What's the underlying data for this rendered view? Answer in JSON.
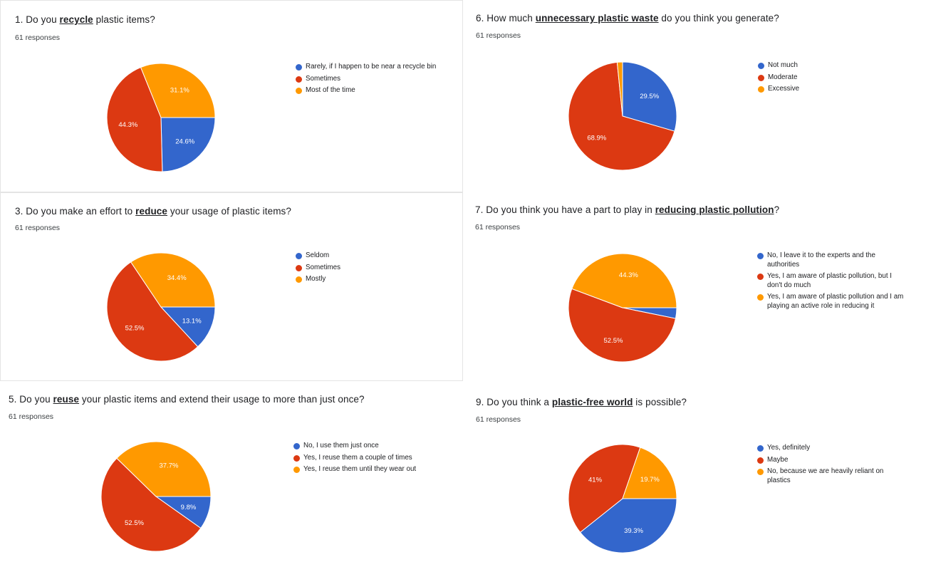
{
  "colors": {
    "blue": "#3366cc",
    "red": "#dc3912",
    "orange": "#ff9900"
  },
  "chart_data": [
    {
      "id": "q1",
      "type": "pie",
      "title_prefix": "1. Do you ",
      "title_keyword": "recycle",
      "title_suffix": " plastic items?",
      "title": "1. Do you recycle plastic items?",
      "responses": "61 responses",
      "slices": [
        {
          "label": "Rarely, if I happen to be near a recycle bin",
          "value": 24.6,
          "display": "24.6%",
          "color": "#3366cc"
        },
        {
          "label": "Sometimes",
          "value": 44.3,
          "display": "44.3%",
          "color": "#dc3912"
        },
        {
          "label": "Most of the time",
          "value": 31.1,
          "display": "31.1%",
          "color": "#ff9900"
        }
      ]
    },
    {
      "id": "q6",
      "type": "pie",
      "title_prefix": "6.  How much ",
      "title_keyword": "unnecessary plastic waste",
      "title_suffix": " do you think you generate?",
      "title": "6.  How much unnecessary plastic waste do you think you generate?",
      "responses": "61 responses",
      "slices": [
        {
          "label": "Not much",
          "value": 29.5,
          "display": "29.5%",
          "color": "#3366cc"
        },
        {
          "label": "Moderate",
          "value": 68.9,
          "display": "68.9%",
          "color": "#dc3912"
        },
        {
          "label": "Excessive",
          "value": 1.6,
          "display": "",
          "color": "#ff9900"
        }
      ]
    },
    {
      "id": "q3",
      "type": "pie",
      "title_prefix": "3.  Do you make an effort to ",
      "title_keyword": "reduce",
      "title_suffix": " your usage of plastic items?",
      "title": "3.  Do you make an effort to reduce your usage of plastic items?",
      "responses": "61 responses",
      "slices": [
        {
          "label": "Seldom",
          "value": 13.1,
          "display": "13.1%",
          "color": "#3366cc"
        },
        {
          "label": "Sometimes",
          "value": 52.5,
          "display": "52.5%",
          "color": "#dc3912"
        },
        {
          "label": "Mostly",
          "value": 34.4,
          "display": "34.4%",
          "color": "#ff9900"
        }
      ]
    },
    {
      "id": "q7",
      "type": "pie",
      "title_prefix": "7.  Do you think you have a part to play in ",
      "title_keyword": "reducing plastic pollution",
      "title_suffix": "?",
      "title": "7.  Do you think you have a part to play in reducing plastic pollution?",
      "responses": "61 responses",
      "slices": [
        {
          "label": "No, I leave it to the experts and the authorities",
          "value": 3.2,
          "display": "",
          "color": "#3366cc"
        },
        {
          "label": "Yes, I am aware of plastic pollution, but I don't do much",
          "value": 52.5,
          "display": "52.5%",
          "color": "#dc3912"
        },
        {
          "label": "Yes, I am aware of plastic pollution and I am playing an active role in reducing it",
          "value": 44.3,
          "display": "44.3%",
          "color": "#ff9900"
        }
      ]
    },
    {
      "id": "q5",
      "type": "pie",
      "title_prefix": "5.  Do you ",
      "title_keyword": "reuse",
      "title_suffix": " your plastic items and extend their usage to more than just once?",
      "title": "5.  Do you reuse your plastic items and extend their usage to more than just once?",
      "responses": "61 responses",
      "slices": [
        {
          "label": "No, I use them just once",
          "value": 9.8,
          "display": "9.8%",
          "color": "#3366cc"
        },
        {
          "label": "Yes, I reuse them a couple of times",
          "value": 52.5,
          "display": "52.5%",
          "color": "#dc3912"
        },
        {
          "label": "Yes, I reuse them until they wear out",
          "value": 37.7,
          "display": "37.7%",
          "color": "#ff9900"
        }
      ]
    },
    {
      "id": "q9",
      "type": "pie",
      "title_prefix": "9. Do you think a ",
      "title_keyword": "plastic-free world",
      "title_suffix": " is possible?",
      "title": "9. Do you think a plastic-free world is possible?",
      "responses": "61 responses",
      "slices": [
        {
          "label": "Yes, definitely",
          "value": 39.3,
          "display": "39.3%",
          "color": "#3366cc"
        },
        {
          "label": "Maybe",
          "value": 41,
          "display": "41%",
          "color": "#dc3912"
        },
        {
          "label": "No, because we are heavily reliant on plastics",
          "value": 19.7,
          "display": "19.7%",
          "color": "#ff9900"
        }
      ]
    }
  ]
}
